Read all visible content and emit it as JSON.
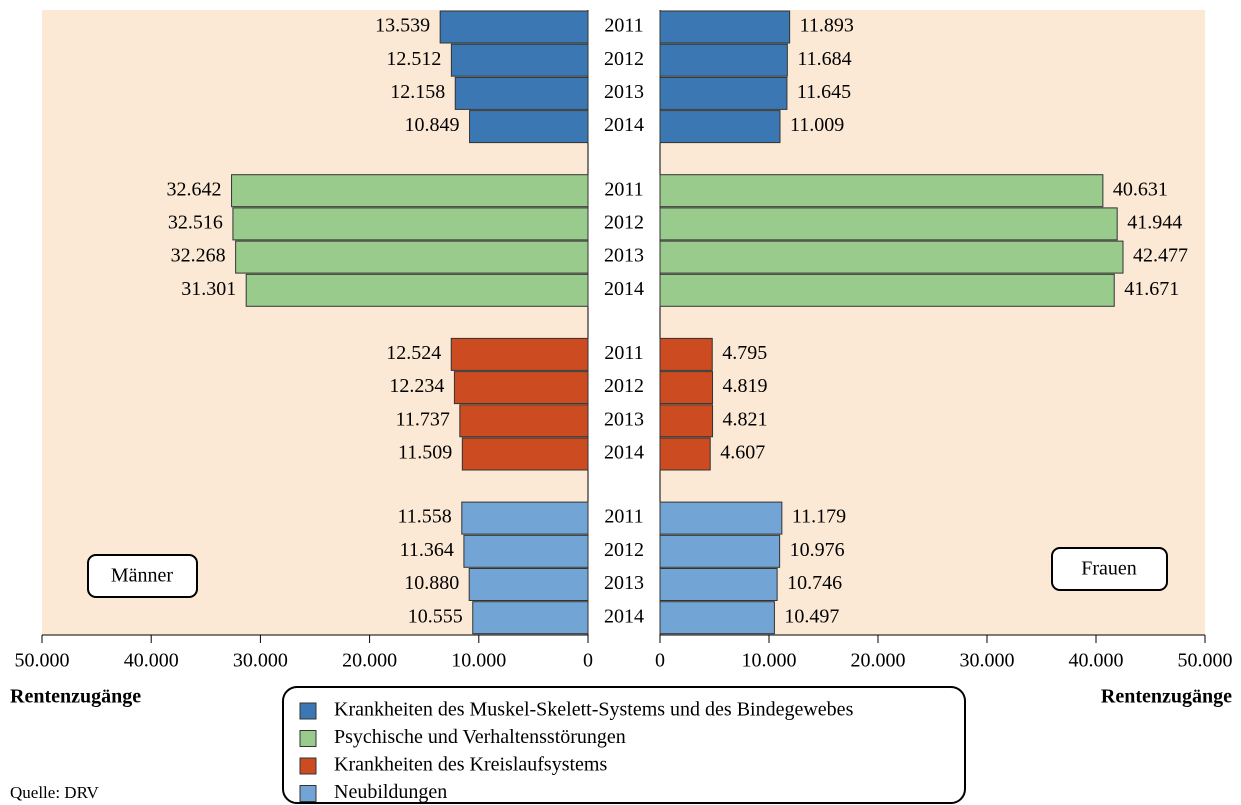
{
  "chart_data": {
    "type": "butterfly",
    "categories": [
      "2011",
      "2012",
      "2013",
      "2014"
    ],
    "left_label": "Männer",
    "right_label": "Frauen",
    "xlabel_left": "Rentenzugänge",
    "xlabel_right": "Rentenzugänge",
    "source": "Quelle: DRV",
    "xlim": [
      0,
      50000
    ],
    "xticks": [
      0,
      {
        "value": 10000,
        "label": "10.000"
      },
      {
        "value": 20000,
        "label": "20.000"
      },
      {
        "value": 30000,
        "label": "30.000"
      },
      {
        "value": 40000,
        "label": "40.000"
      },
      {
        "value": 50000,
        "label": "50.000"
      }
    ],
    "series": [
      {
        "name": "Krankheiten des Muskel-Skelett-Systems und des Bindegewebes",
        "color": "#3b78b3",
        "men": [
          13539,
          12512,
          12158,
          10849
        ],
        "men_labels": [
          "13.539",
          "12.512",
          "12.158",
          "10.849"
        ],
        "women": [
          11893,
          11684,
          11645,
          11009
        ],
        "women_labels": [
          "11.893",
          "11.684",
          "11.645",
          "11.009"
        ]
      },
      {
        "name": "Psychische und Verhaltensstörungen",
        "color": "#98cb8c",
        "men": [
          32642,
          32516,
          32268,
          31301
        ],
        "men_labels": [
          "32.642",
          "32.516",
          "32.268",
          "31.301"
        ],
        "women": [
          40631,
          41944,
          42477,
          41671
        ],
        "women_labels": [
          "40.631",
          "41.944",
          "42.477",
          "41.671"
        ]
      },
      {
        "name": "Krankheiten des Kreislaufsystems",
        "color": "#cc4b20",
        "men": [
          12524,
          12234,
          11737,
          11509
        ],
        "men_labels": [
          "12.524",
          "12.234",
          "11.737",
          "11.509"
        ],
        "women": [
          4795,
          4819,
          4821,
          4607
        ],
        "women_labels": [
          "4.795",
          "4.819",
          "4.821",
          "4.607"
        ]
      },
      {
        "name": "Neubildungen",
        "color": "#72a5d6",
        "men": [
          11558,
          11364,
          10880,
          10555
        ],
        "men_labels": [
          "11.558",
          "11.364",
          "10.880",
          "10.555"
        ],
        "women": [
          11179,
          10976,
          10746,
          10497
        ],
        "women_labels": [
          "11.179",
          "10.976",
          "10.746",
          "10.497"
        ]
      }
    ]
  }
}
